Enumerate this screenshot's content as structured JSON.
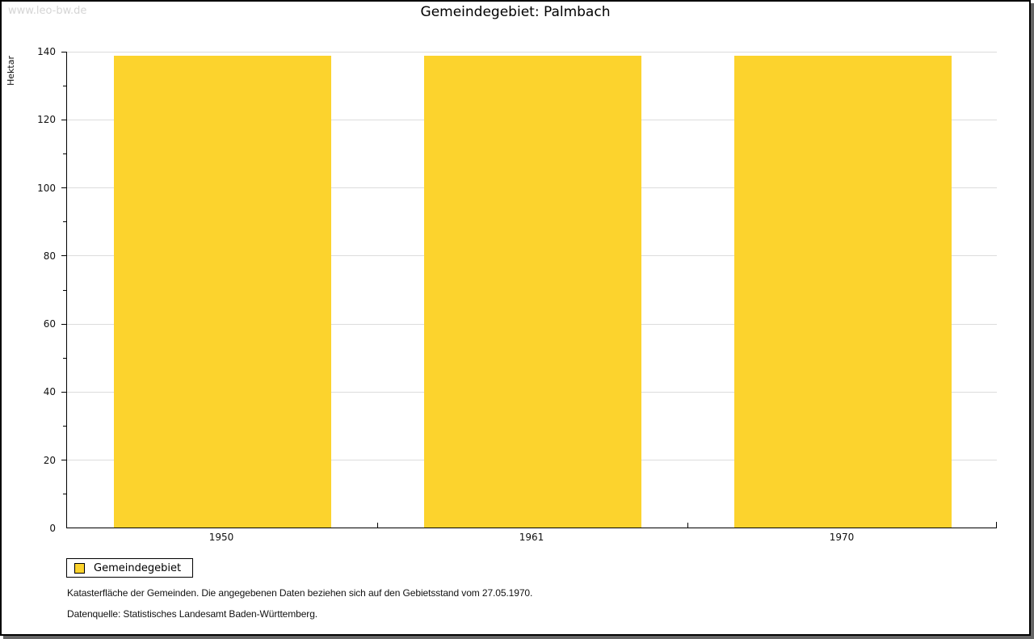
{
  "watermark": "www.leo-bw.de",
  "header": {
    "title": "Gemeindegebiet: Palmbach"
  },
  "chart_data": {
    "type": "bar",
    "title": "Gemeindegebiet: Palmbach",
    "categories": [
      "1950",
      "1961",
      "1970"
    ],
    "series": [
      {
        "name": "Gemeindegebiet",
        "values": [
          138.5,
          138.5,
          138.5
        ]
      }
    ],
    "xlabel": "",
    "ylabel": "Hektar",
    "ylim": [
      0,
      140
    ],
    "ytick_step": 20,
    "ytick_minor_step": 10,
    "grid": true,
    "legend_position": "bottom-left",
    "bar_color": "#FCD32D"
  },
  "legend": {
    "items": [
      {
        "label": "Gemeindegebiet",
        "color": "#FCD32D"
      }
    ]
  },
  "footnotes": [
    "Katasterfläche der Gemeinden. Die angegebenen Daten beziehen sich auf den Gebietsstand vom 27.05.1970.",
    "Datenquelle: Statistisches Landesamt Baden-Württemberg."
  ],
  "colors": {
    "bar": "#FCD32D",
    "grid": "#dcdcdc",
    "axis": "#000000",
    "watermark": "#d5d5d5",
    "frame_shadow": "#666666"
  }
}
